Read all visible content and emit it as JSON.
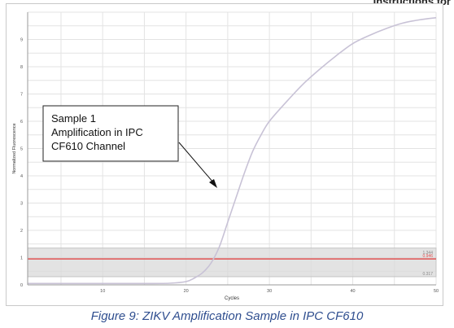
{
  "header_fragment": "Instructions for",
  "caption": "Figure 9: ZIKV Amplification Sample in IPC CF610",
  "annotation": {
    "lines": [
      "Sample 1",
      "Amplification in IPC",
      "CF610 Channel"
    ]
  },
  "colors": {
    "curve": "#c8c2d6",
    "threshold": "#e05050",
    "band": "#d9d9d9",
    "grid": "#e3e3e3",
    "caption": "#2f4e8f"
  },
  "chart_data": {
    "type": "line",
    "title": "",
    "xlabel": "Cycles",
    "ylabel": "Normalized Fluorescence",
    "xlim": [
      1,
      50
    ],
    "ylim": [
      0,
      10
    ],
    "x_ticks": [
      "10",
      "20",
      "30",
      "40",
      "50"
    ],
    "y_ticks": [
      "0",
      "1",
      "2",
      "3",
      "4",
      "5",
      "6",
      "7",
      "8",
      "9"
    ],
    "grid": true,
    "series": [
      {
        "x": [
          1,
          5,
          10,
          15,
          18,
          20,
          21,
          22,
          23,
          24,
          25,
          26,
          27,
          28,
          29,
          30,
          32,
          34,
          36,
          38,
          40,
          42,
          44,
          46,
          48,
          50
        ],
        "y": [
          0.05,
          0.05,
          0.05,
          0.05,
          0.06,
          0.12,
          0.25,
          0.45,
          0.8,
          1.4,
          2.3,
          3.2,
          4.1,
          4.9,
          5.5,
          6.0,
          6.7,
          7.35,
          7.9,
          8.4,
          8.85,
          9.15,
          9.4,
          9.6,
          9.72,
          9.8
        ]
      }
    ],
    "threshold": {
      "value": 0.95,
      "band": [
        0.3,
        1.35
      ]
    },
    "band_labels": [
      "1.344",
      "0.946",
      "0.317"
    ]
  }
}
